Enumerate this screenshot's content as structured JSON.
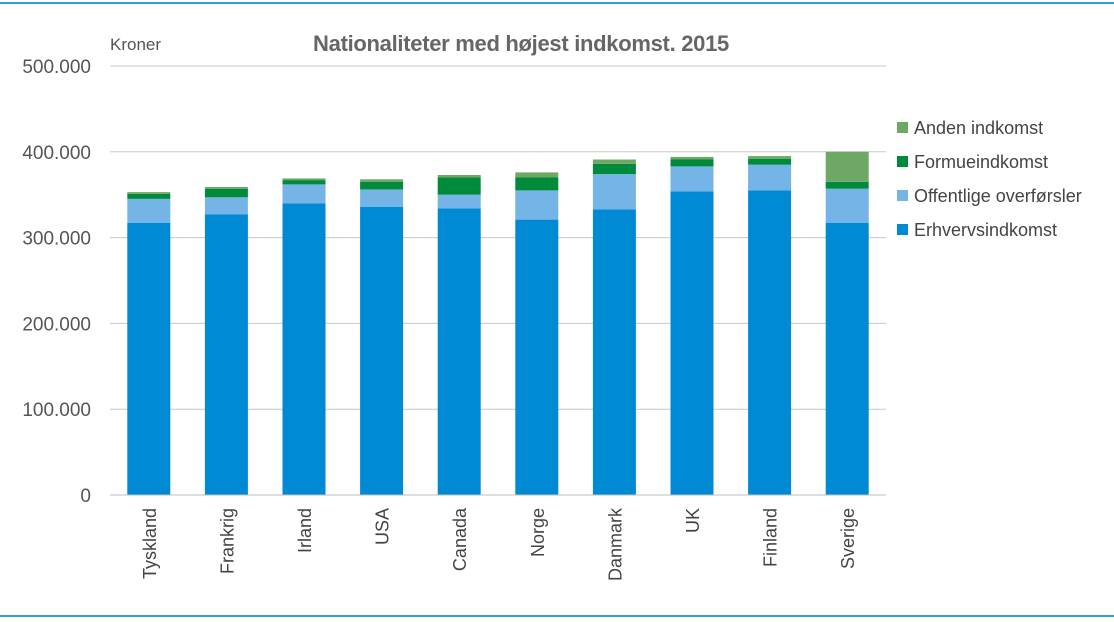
{
  "chart_data": {
    "type": "bar",
    "stacked": true,
    "title": "Nationaliteter med højest indkomst. 2015",
    "ylabel": "Kroner",
    "xlabel": "",
    "ylim": [
      0,
      500000
    ],
    "yticks": [
      0,
      100000,
      200000,
      300000,
      400000,
      500000
    ],
    "ytick_labels": [
      "0",
      "100.000",
      "200.000",
      "300.000",
      "400.000",
      "500.000"
    ],
    "grid": true,
    "legend_position": "right",
    "categories": [
      "Tyskland",
      "Frankrig",
      "Irland",
      "USA",
      "Canada",
      "Norge",
      "Danmark",
      "UK",
      "Finland",
      "Sverige"
    ],
    "series": [
      {
        "name": "Erhvervsindkomst",
        "color": "#008ad4",
        "values": [
          317000,
          327000,
          340000,
          336000,
          334000,
          321000,
          333000,
          354000,
          355000,
          317000
        ]
      },
      {
        "name": "Offentlige overførsler",
        "color": "#74b4e6",
        "values": [
          28000,
          20000,
          22000,
          20000,
          16000,
          34000,
          41000,
          29000,
          30000,
          40000
        ]
      },
      {
        "name": "Formueindkomst",
        "color": "#008a3c",
        "values": [
          6000,
          10000,
          5000,
          9000,
          20000,
          15000,
          12000,
          8000,
          7000,
          8000
        ]
      },
      {
        "name": "Anden indkomst",
        "color": "#6ea865",
        "values": [
          2000,
          2000,
          2000,
          3000,
          3000,
          6000,
          5000,
          3000,
          3000,
          35000
        ]
      }
    ]
  }
}
